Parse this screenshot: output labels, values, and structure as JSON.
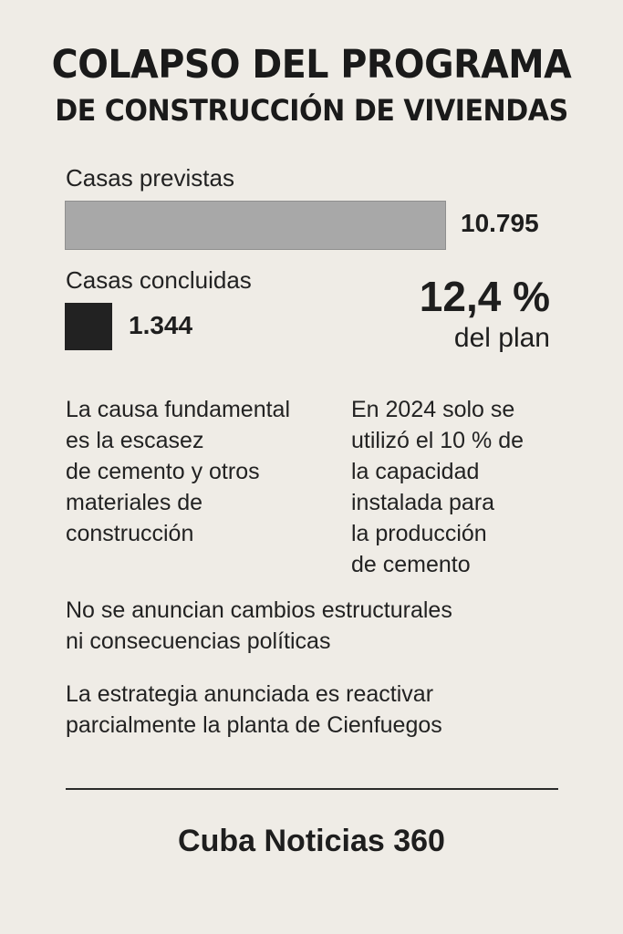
{
  "title_line1": "COLAPSO DEL PROGRAMA",
  "title_line2": "DE CONSTRUCCIÓN DE VIVIENDAS",
  "chart_data": {
    "type": "bar",
    "categories": [
      "Casas previstas",
      "Casas concluidas"
    ],
    "values": [
      10795,
      1344
    ],
    "value_labels": [
      "10.795",
      "1.344"
    ],
    "colors": [
      "#a8a8a8",
      "#222222"
    ],
    "percent_label": "12,4 %",
    "percent_sublabel": "del plan",
    "title": "",
    "xlabel": "",
    "ylabel": ""
  },
  "notes": {
    "left": [
      "La causa fundamental",
      "es la escasez",
      "de cemento y otros",
      "materiales de",
      "construcción"
    ],
    "right": [
      "En 2024 solo se",
      "utilizó el 10 % de",
      "la capacidad",
      "instalada para",
      "la producción",
      "de cemento"
    ],
    "structural": [
      "No se anuncian cambios estructurales",
      "ni consecuencias políticas"
    ],
    "strategy": [
      "La estrategia anunciada es reactivar",
      "parcialmente la planta de Cienfuegos"
    ]
  },
  "footer": "Cuba Noticias 360"
}
